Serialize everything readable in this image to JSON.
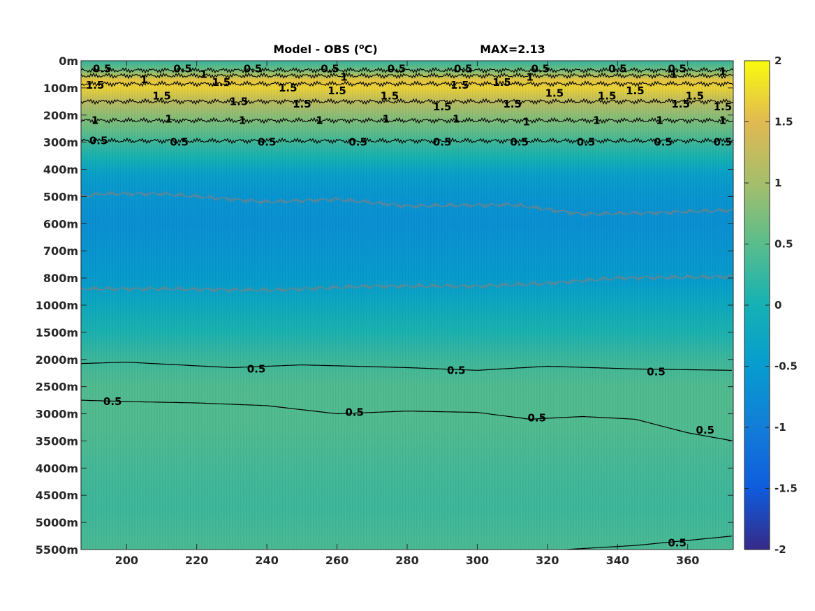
{
  "chart_data": {
    "type": "heatmap",
    "title": "Model - OBS (",
    "title_superscript": "o",
    "title_unit": "C)",
    "max_label": "MAX=2.13",
    "xlim": [
      187,
      373
    ],
    "x_ticks": [
      200,
      220,
      240,
      260,
      280,
      300,
      320,
      340,
      360
    ],
    "y_tick_labels": [
      "0m",
      "100m",
      "200m",
      "300m",
      "400m",
      "500m",
      "600m",
      "700m",
      "800m",
      "1000m",
      "1500m",
      "2000m",
      "2500m",
      "3000m",
      "3500m",
      "4000m",
      "4500m",
      "5000m",
      "5500m"
    ],
    "colorbar": {
      "range": [
        -2,
        2
      ],
      "ticks": [
        "2",
        "1.5",
        "1",
        "0.5",
        "0",
        "-0.5",
        "-1",
        "-1.5",
        "-2"
      ],
      "colormap": "parula"
    },
    "depth_profile": [
      {
        "depth_index": 0.0,
        "value": 0.25
      },
      {
        "depth_index": 0.3,
        "value": 0.6
      },
      {
        "depth_index": 0.7,
        "value": 1.6
      },
      {
        "depth_index": 1.0,
        "value": 1.7
      },
      {
        "depth_index": 1.5,
        "value": 1.2
      },
      {
        "depth_index": 2.0,
        "value": 0.85
      },
      {
        "depth_index": 2.6,
        "value": 0.55
      },
      {
        "depth_index": 3.0,
        "value": 0.3
      },
      {
        "depth_index": 3.6,
        "value": 0.0
      },
      {
        "depth_index": 4.2,
        "value": -0.4
      },
      {
        "depth_index": 5.0,
        "value": -0.6
      },
      {
        "depth_index": 6.0,
        "value": -0.7
      },
      {
        "depth_index": 7.0,
        "value": -0.6
      },
      {
        "depth_index": 8.2,
        "value": -0.45
      },
      {
        "depth_index": 9.0,
        "value": -0.2
      },
      {
        "depth_index": 10.0,
        "value": 0.05
      },
      {
        "depth_index": 11.0,
        "value": 0.3
      },
      {
        "depth_index": 12.0,
        "value": 0.45
      },
      {
        "depth_index": 13.5,
        "value": 0.45
      },
      {
        "depth_index": 15.0,
        "value": 0.35
      },
      {
        "depth_index": 16.5,
        "value": 0.3
      },
      {
        "depth_index": 18.0,
        "value": 0.4
      }
    ],
    "contours": [
      {
        "level": "0.5",
        "color": "#000000",
        "wiggle": true,
        "points": [
          [
            187,
            0.35
          ],
          [
            373,
            0.35
          ]
        ],
        "labels": [
          [
            193,
            0.3
          ],
          [
            216,
            0.3
          ],
          [
            236,
            0.3
          ],
          [
            258,
            0.3
          ],
          [
            277,
            0.3
          ],
          [
            296,
            0.3
          ],
          [
            318,
            0.3
          ],
          [
            340,
            0.3
          ],
          [
            357,
            0.3
          ]
        ]
      },
      {
        "level": "1",
        "color": "#000000",
        "wiggle": true,
        "points": [
          [
            187,
            0.55
          ],
          [
            373,
            0.55
          ]
        ],
        "labels": [
          [
            205,
            0.7
          ],
          [
            222,
            0.5
          ],
          [
            262,
            0.6
          ],
          [
            315,
            0.6
          ],
          [
            356,
            0.5
          ],
          [
            370,
            0.4
          ]
        ]
      },
      {
        "level": "1.5",
        "color": "#000000",
        "wiggle": true,
        "points": [
          [
            187,
            0.85
          ],
          [
            373,
            0.85
          ]
        ],
        "labels": [
          [
            191,
            0.9
          ],
          [
            227,
            0.8
          ],
          [
            246,
            1.0
          ],
          [
            260,
            1.1
          ],
          [
            275,
            1.3
          ],
          [
            295,
            0.9
          ],
          [
            307,
            0.8
          ],
          [
            322,
            1.2
          ],
          [
            345,
            1.1
          ],
          [
            362,
            1.3
          ]
        ]
      },
      {
        "level": "1.5",
        "color": "#000000",
        "wiggle": true,
        "points": [
          [
            187,
            1.5
          ],
          [
            373,
            1.5
          ]
        ],
        "labels": [
          [
            210,
            1.3
          ],
          [
            232,
            1.5
          ],
          [
            250,
            1.6
          ],
          [
            290,
            1.7
          ],
          [
            310,
            1.6
          ],
          [
            337,
            1.3
          ],
          [
            358,
            1.6
          ],
          [
            370,
            1.7
          ]
        ]
      },
      {
        "level": "1",
        "color": "#000000",
        "wiggle": true,
        "points": [
          [
            187,
            2.2
          ],
          [
            373,
            2.2
          ]
        ],
        "labels": [
          [
            191,
            2.2
          ],
          [
            212,
            2.15
          ],
          [
            233,
            2.2
          ],
          [
            255,
            2.2
          ],
          [
            274,
            2.15
          ],
          [
            294,
            2.15
          ],
          [
            314,
            2.25
          ],
          [
            334,
            2.2
          ],
          [
            352,
            2.2
          ],
          [
            370,
            2.2
          ]
        ]
      },
      {
        "level": "0.5",
        "color": "#000000",
        "wiggle": true,
        "points": [
          [
            187,
            2.95
          ],
          [
            373,
            2.95
          ]
        ],
        "labels": [
          [
            192,
            2.95
          ],
          [
            215,
            3.0
          ],
          [
            240,
            3.0
          ],
          [
            266,
            3.0
          ],
          [
            290,
            3.0
          ],
          [
            312,
            3.0
          ],
          [
            331,
            3.0
          ],
          [
            353,
            3.0
          ],
          [
            370,
            3.0
          ]
        ]
      },
      {
        "level": "-0.5",
        "color": "#808080",
        "wiggle": true,
        "points": [
          [
            187,
            5.0
          ],
          [
            193,
            4.9
          ],
          [
            210,
            4.9
          ],
          [
            240,
            5.2
          ],
          [
            260,
            5.1
          ],
          [
            280,
            5.35
          ],
          [
            310,
            5.3
          ],
          [
            330,
            5.65
          ],
          [
            350,
            5.6
          ],
          [
            373,
            5.5
          ]
        ],
        "labels": []
      },
      {
        "level": "-0.5",
        "color": "#808080",
        "wiggle": true,
        "points": [
          [
            187,
            8.4
          ],
          [
            210,
            8.4
          ],
          [
            240,
            8.45
          ],
          [
            270,
            8.3
          ],
          [
            300,
            8.3
          ],
          [
            320,
            8.2
          ],
          [
            340,
            8.0
          ],
          [
            373,
            7.95
          ]
        ],
        "labels": []
      },
      {
        "level": "0.5",
        "color": "#000000",
        "wiggle": false,
        "points": [
          [
            187,
            11.15
          ],
          [
            200,
            11.1
          ],
          [
            230,
            11.3
          ],
          [
            250,
            11.2
          ],
          [
            280,
            11.3
          ],
          [
            300,
            11.4
          ],
          [
            320,
            11.25
          ],
          [
            345,
            11.35
          ],
          [
            373,
            11.4
          ]
        ],
        "labels": [
          [
            237,
            11.35
          ],
          [
            294,
            11.4
          ],
          [
            351,
            11.45
          ]
        ]
      },
      {
        "level": "0.5",
        "color": "#000000",
        "wiggle": false,
        "points": [
          [
            187,
            12.5
          ],
          [
            200,
            12.55
          ],
          [
            220,
            12.6
          ],
          [
            240,
            12.7
          ],
          [
            260,
            13.0
          ],
          [
            280,
            12.9
          ],
          [
            300,
            12.95
          ],
          [
            315,
            13.2
          ],
          [
            330,
            13.1
          ],
          [
            345,
            13.2
          ],
          [
            360,
            13.7
          ],
          [
            373,
            14.0
          ]
        ],
        "labels": [
          [
            196,
            12.55
          ],
          [
            265,
            12.95
          ],
          [
            317,
            13.15
          ],
          [
            365,
            13.6
          ]
        ]
      },
      {
        "level": "0.5",
        "color": "#000000",
        "wiggle": false,
        "points": [
          [
            325,
            18.0
          ],
          [
            345,
            17.85
          ],
          [
            365,
            17.6
          ],
          [
            373,
            17.5
          ]
        ],
        "labels": [
          [
            357,
            17.75
          ]
        ]
      }
    ]
  }
}
